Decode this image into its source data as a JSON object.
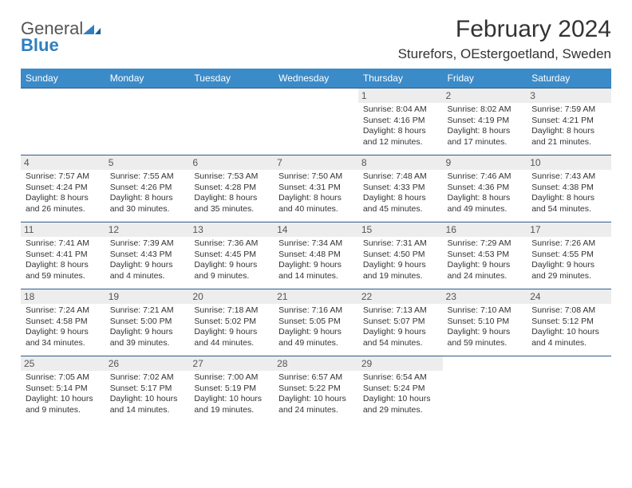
{
  "brand": {
    "general": "General",
    "blue": "Blue"
  },
  "title": "February 2024",
  "location": "Sturefors, OEstergoetland, Sweden",
  "colors": {
    "header_bg": "#3b8bc9",
    "header_text": "#ffffff",
    "row_separator": "#2e5c88",
    "daynum_bg": "#ededed",
    "text": "#333333",
    "logo_accent": "#2f7fbf"
  },
  "day_headers": [
    "Sunday",
    "Monday",
    "Tuesday",
    "Wednesday",
    "Thursday",
    "Friday",
    "Saturday"
  ],
  "weeks": [
    [
      null,
      null,
      null,
      null,
      {
        "n": "1",
        "sunrise": "8:04 AM",
        "sunset": "4:16 PM",
        "daylight": "8 hours and 12 minutes."
      },
      {
        "n": "2",
        "sunrise": "8:02 AM",
        "sunset": "4:19 PM",
        "daylight": "8 hours and 17 minutes."
      },
      {
        "n": "3",
        "sunrise": "7:59 AM",
        "sunset": "4:21 PM",
        "daylight": "8 hours and 21 minutes."
      }
    ],
    [
      {
        "n": "4",
        "sunrise": "7:57 AM",
        "sunset": "4:24 PM",
        "daylight": "8 hours and 26 minutes."
      },
      {
        "n": "5",
        "sunrise": "7:55 AM",
        "sunset": "4:26 PM",
        "daylight": "8 hours and 30 minutes."
      },
      {
        "n": "6",
        "sunrise": "7:53 AM",
        "sunset": "4:28 PM",
        "daylight": "8 hours and 35 minutes."
      },
      {
        "n": "7",
        "sunrise": "7:50 AM",
        "sunset": "4:31 PM",
        "daylight": "8 hours and 40 minutes."
      },
      {
        "n": "8",
        "sunrise": "7:48 AM",
        "sunset": "4:33 PM",
        "daylight": "8 hours and 45 minutes."
      },
      {
        "n": "9",
        "sunrise": "7:46 AM",
        "sunset": "4:36 PM",
        "daylight": "8 hours and 49 minutes."
      },
      {
        "n": "10",
        "sunrise": "7:43 AM",
        "sunset": "4:38 PM",
        "daylight": "8 hours and 54 minutes."
      }
    ],
    [
      {
        "n": "11",
        "sunrise": "7:41 AM",
        "sunset": "4:41 PM",
        "daylight": "8 hours and 59 minutes."
      },
      {
        "n": "12",
        "sunrise": "7:39 AM",
        "sunset": "4:43 PM",
        "daylight": "9 hours and 4 minutes."
      },
      {
        "n": "13",
        "sunrise": "7:36 AM",
        "sunset": "4:45 PM",
        "daylight": "9 hours and 9 minutes."
      },
      {
        "n": "14",
        "sunrise": "7:34 AM",
        "sunset": "4:48 PM",
        "daylight": "9 hours and 14 minutes."
      },
      {
        "n": "15",
        "sunrise": "7:31 AM",
        "sunset": "4:50 PM",
        "daylight": "9 hours and 19 minutes."
      },
      {
        "n": "16",
        "sunrise": "7:29 AM",
        "sunset": "4:53 PM",
        "daylight": "9 hours and 24 minutes."
      },
      {
        "n": "17",
        "sunrise": "7:26 AM",
        "sunset": "4:55 PM",
        "daylight": "9 hours and 29 minutes."
      }
    ],
    [
      {
        "n": "18",
        "sunrise": "7:24 AM",
        "sunset": "4:58 PM",
        "daylight": "9 hours and 34 minutes."
      },
      {
        "n": "19",
        "sunrise": "7:21 AM",
        "sunset": "5:00 PM",
        "daylight": "9 hours and 39 minutes."
      },
      {
        "n": "20",
        "sunrise": "7:18 AM",
        "sunset": "5:02 PM",
        "daylight": "9 hours and 44 minutes."
      },
      {
        "n": "21",
        "sunrise": "7:16 AM",
        "sunset": "5:05 PM",
        "daylight": "9 hours and 49 minutes."
      },
      {
        "n": "22",
        "sunrise": "7:13 AM",
        "sunset": "5:07 PM",
        "daylight": "9 hours and 54 minutes."
      },
      {
        "n": "23",
        "sunrise": "7:10 AM",
        "sunset": "5:10 PM",
        "daylight": "9 hours and 59 minutes."
      },
      {
        "n": "24",
        "sunrise": "7:08 AM",
        "sunset": "5:12 PM",
        "daylight": "10 hours and 4 minutes."
      }
    ],
    [
      {
        "n": "25",
        "sunrise": "7:05 AM",
        "sunset": "5:14 PM",
        "daylight": "10 hours and 9 minutes."
      },
      {
        "n": "26",
        "sunrise": "7:02 AM",
        "sunset": "5:17 PM",
        "daylight": "10 hours and 14 minutes."
      },
      {
        "n": "27",
        "sunrise": "7:00 AM",
        "sunset": "5:19 PM",
        "daylight": "10 hours and 19 minutes."
      },
      {
        "n": "28",
        "sunrise": "6:57 AM",
        "sunset": "5:22 PM",
        "daylight": "10 hours and 24 minutes."
      },
      {
        "n": "29",
        "sunrise": "6:54 AM",
        "sunset": "5:24 PM",
        "daylight": "10 hours and 29 minutes."
      },
      null,
      null
    ]
  ],
  "labels": {
    "sunrise": "Sunrise: ",
    "sunset": "Sunset: ",
    "daylight": "Daylight: "
  }
}
